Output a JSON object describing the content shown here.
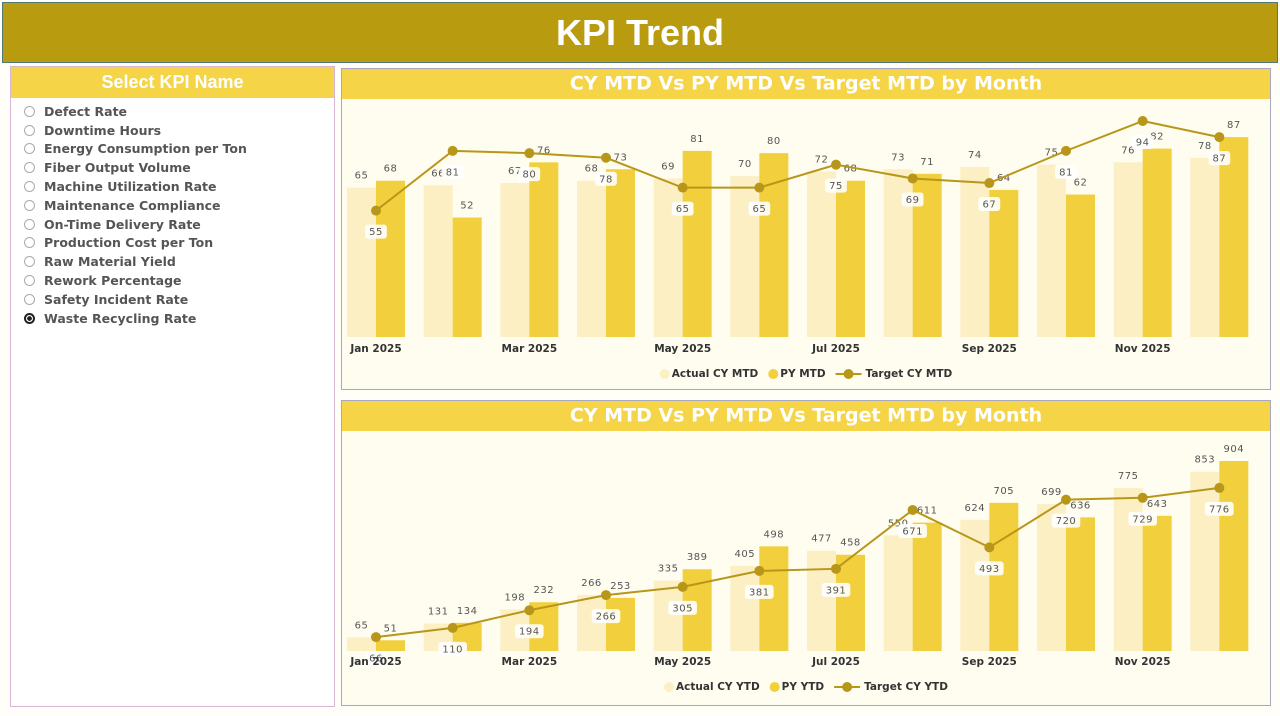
{
  "header": {
    "title": "KPI Trend"
  },
  "slicer": {
    "title": "Select KPI Name",
    "options": [
      "Defect Rate",
      "Downtime Hours",
      "Energy Consumption per Ton",
      "Fiber Output Volume",
      "Machine Utilization Rate",
      "Maintenance Compliance",
      "On-Time Delivery Rate",
      "Production Cost per Ton",
      "Raw Material Yield",
      "Rework Percentage",
      "Safety Incident Rate",
      "Waste Recycling Rate"
    ],
    "selected": 11
  },
  "chart_data": [
    {
      "type": "combo",
      "title": "CY MTD Vs PY MTD Vs Target MTD by Month",
      "categories": [
        "Jan 2025",
        null,
        "Mar 2025",
        null,
        "May 2025",
        null,
        "Jul 2025",
        null,
        "Sep 2025",
        null,
        "Nov 2025",
        null
      ],
      "series": [
        {
          "name": "Actual CY MTD",
          "type": "bar",
          "color": "#fbefc3",
          "values": [
            65,
            66,
            67,
            68,
            69,
            70,
            72,
            73,
            74,
            75,
            76,
            78
          ]
        },
        {
          "name": "PY MTD",
          "type": "bar",
          "color": "#f2cf3c",
          "values": [
            68,
            52,
            76,
            73,
            81,
            80,
            68,
            71,
            64,
            62,
            82,
            87
          ]
        },
        {
          "name": "Target CY MTD",
          "type": "line",
          "color": "#b8961a",
          "values": [
            55,
            81,
            80,
            78,
            65,
            65,
            75,
            69,
            67,
            81,
            94,
            87
          ]
        }
      ]
    },
    {
      "type": "combo",
      "title": "CY MTD Vs PY MTD Vs Target MTD by Month",
      "categories": [
        "Jan 2025",
        null,
        "Mar 2025",
        null,
        "May 2025",
        null,
        "Jul 2025",
        null,
        "Sep 2025",
        null,
        "Nov 2025",
        null
      ],
      "series": [
        {
          "name": "Actual CY YTD",
          "type": "bar",
          "color": "#fbefc3",
          "values": [
            65,
            131,
            198,
            266,
            335,
            405,
            477,
            550,
            624,
            699,
            775,
            853
          ]
        },
        {
          "name": "PY YTD",
          "type": "bar",
          "color": "#f2cf3c",
          "values": [
            51,
            134,
            232,
            253,
            389,
            498,
            458,
            611,
            705,
            636,
            643,
            904
          ]
        },
        {
          "name": "Target CY YTD",
          "type": "line",
          "color": "#b8961a",
          "values": [
            66,
            110,
            194,
            266,
            305,
            381,
            391,
            671,
            493,
            720,
            729,
            776
          ]
        }
      ]
    }
  ]
}
